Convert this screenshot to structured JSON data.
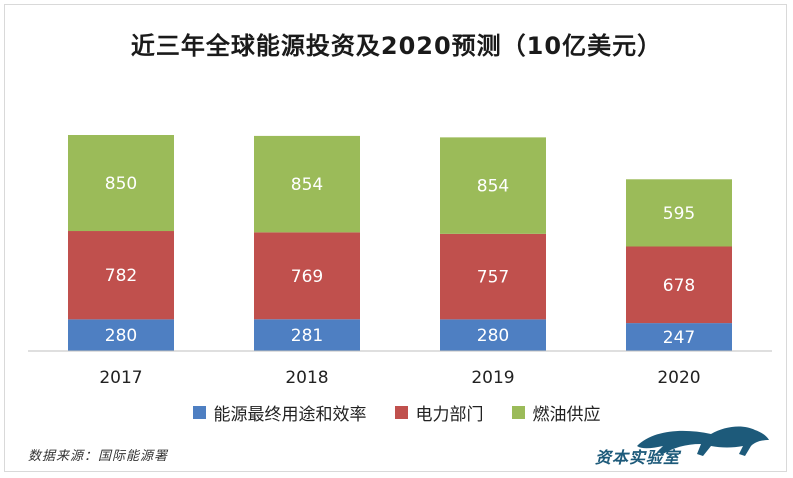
{
  "chart_data": {
    "type": "bar",
    "stacked": true,
    "title": "近三年全球能源投资及2020预测（10亿美元）",
    "categories": [
      "2017",
      "2018",
      "2019",
      "2020"
    ],
    "series": [
      {
        "name": "能源最终用途和效率",
        "color": "#4e7fc2",
        "values": [
          280,
          281,
          280,
          247
        ]
      },
      {
        "name": "电力部门",
        "color": "#c0504d",
        "values": [
          782,
          769,
          757,
          678
        ]
      },
      {
        "name": "燃油供应",
        "color": "#9bbb59",
        "values": [
          850,
          854,
          854,
          595
        ]
      }
    ],
    "ylim": [
      0,
      2000
    ],
    "grid": false,
    "legend_position": "bottom"
  },
  "source_note": "数据来源：国际能源署",
  "brand_name": "资本实验室"
}
